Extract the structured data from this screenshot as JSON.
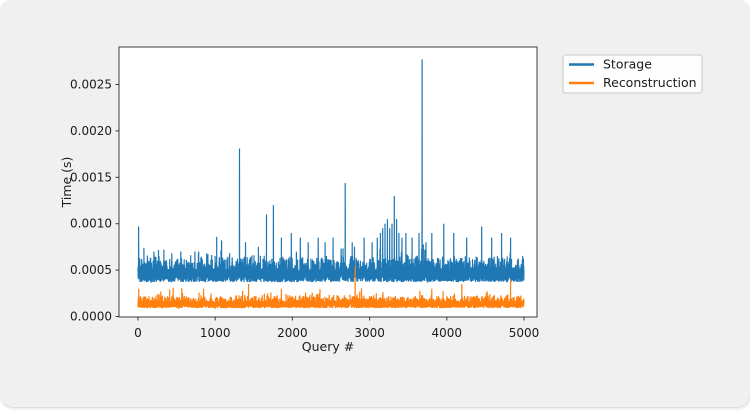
{
  "figure": {
    "background_color": "#f0f0f0",
    "plot_background_color": "#ffffff",
    "spine_color": "#3b3b3b"
  },
  "chart_data": {
    "type": "line",
    "title": "",
    "xlabel": "Query #",
    "ylabel": "Time (s)",
    "x_ticks": [
      0,
      1000,
      2000,
      3000,
      4000,
      5000
    ],
    "x_tick_labels": [
      "0",
      "1000",
      "2000",
      "3000",
      "4000",
      "5000"
    ],
    "y_ticks": [
      0.0,
      0.0005,
      0.001,
      0.0015,
      0.002,
      0.0025
    ],
    "y_tick_labels": [
      "0.0000",
      "0.0005",
      "0.0010",
      "0.0015",
      "0.0020",
      "0.0025"
    ],
    "xlim": [
      -250,
      5170
    ],
    "ylim": [
      -1e-05,
      0.00291
    ],
    "grid": false,
    "n_points": 5000,
    "legend": {
      "position": "outside-upper-right",
      "background": "#fdfdfd",
      "border_color": "#c9c9c9",
      "entries": [
        {
          "label": "Storage",
          "color": "#1f77b4"
        },
        {
          "label": "Reconstruction",
          "color": "#ff7f0e"
        }
      ]
    },
    "series": [
      {
        "name": "Storage",
        "color": "#1f77b4",
        "noise": {
          "base": 0.00037,
          "band": 0.00015,
          "bump_prob": 0.3,
          "bump_amp": 0.00015,
          "tail_prob": 0.05,
          "tail_amp": 0.00018
        },
        "spikes": [
          [
            8,
            0.00097
          ],
          [
            77,
            0.00074
          ],
          [
            206,
            0.0007
          ],
          [
            335,
            0.00072
          ],
          [
            438,
            0.00068
          ],
          [
            554,
            0.0007
          ],
          [
            683,
            0.00066
          ],
          [
            786,
            0.0007
          ],
          [
            890,
            0.00068
          ],
          [
            1019,
            0.00086
          ],
          [
            1083,
            0.00082
          ],
          [
            1315,
            0.00181
          ],
          [
            1393,
            0.0008
          ],
          [
            1560,
            0.00075
          ],
          [
            1664,
            0.0011
          ],
          [
            1754,
            0.0012
          ],
          [
            1857,
            0.00085
          ],
          [
            1986,
            0.0009
          ],
          [
            2102,
            0.00085
          ],
          [
            2205,
            0.0008
          ],
          [
            2334,
            0.00085
          ],
          [
            2424,
            0.0008
          ],
          [
            2527,
            0.00085
          ],
          [
            2684,
            0.00144
          ],
          [
            2774,
            0.0008
          ],
          [
            2929,
            0.00085
          ],
          [
            3032,
            0.0008
          ],
          [
            3100,
            0.00085
          ],
          [
            3140,
            0.0009
          ],
          [
            3170,
            0.00095
          ],
          [
            3200,
            0.001
          ],
          [
            3230,
            0.00105
          ],
          [
            3260,
            0.00095
          ],
          [
            3290,
            0.001
          ],
          [
            3320,
            0.0013
          ],
          [
            3350,
            0.00105
          ],
          [
            3380,
            0.0009
          ],
          [
            3420,
            0.00085
          ],
          [
            3470,
            0.0009
          ],
          [
            3550,
            0.00085
          ],
          [
            3640,
            0.0009
          ],
          [
            3680,
            0.00277
          ],
          [
            3730,
            0.0008
          ],
          [
            3806,
            0.0009
          ],
          [
            3961,
            0.001
          ],
          [
            4090,
            0.0009
          ],
          [
            4258,
            0.00085
          ],
          [
            4452,
            0.00097
          ],
          [
            4581,
            0.00085
          ],
          [
            4710,
            0.0009
          ],
          [
            4826,
            0.00085
          ]
        ]
      },
      {
        "name": "Reconstruction",
        "color": "#ff7f0e",
        "noise": {
          "base": 9e-05,
          "band": 8e-05,
          "bump_prob": 0.25,
          "bump_amp": 7e-05,
          "tail_prob": 0.03,
          "tail_amp": 0.00012
        },
        "spikes": [
          [
            10,
            0.0003
          ],
          [
            300,
            0.0002
          ],
          [
            600,
            0.00022
          ],
          [
            850,
            0.0003
          ],
          [
            1100,
            0.0002
          ],
          [
            1432,
            0.00035
          ],
          [
            1600,
            0.0002
          ],
          [
            1857,
            0.0003
          ],
          [
            2000,
            0.00022
          ],
          [
            2200,
            0.0002
          ],
          [
            2400,
            0.0002
          ],
          [
            2600,
            0.0002
          ],
          [
            2813,
            0.00054
          ],
          [
            3000,
            0.00022
          ],
          [
            3200,
            0.0002
          ],
          [
            3500,
            0.0002
          ],
          [
            3806,
            0.0003
          ],
          [
            4000,
            0.00022
          ],
          [
            4194,
            0.00035
          ],
          [
            4400,
            0.0002
          ],
          [
            4600,
            0.00022
          ],
          [
            4826,
            0.0004
          ]
        ]
      }
    ]
  }
}
